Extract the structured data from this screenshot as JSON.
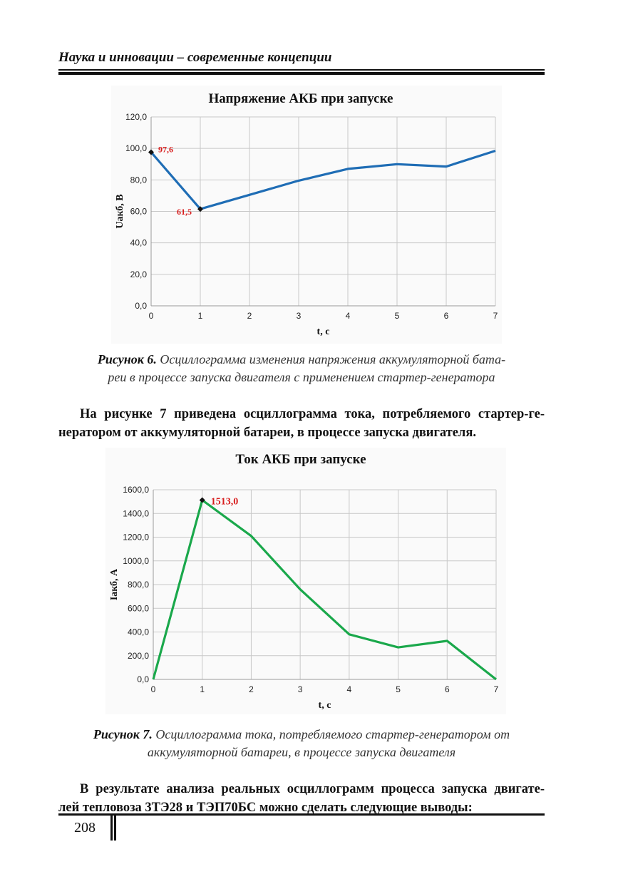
{
  "header": {
    "running_title": "Наука и инновации – современные концепции"
  },
  "chart_data": [
    {
      "type": "line",
      "title": "Напряжение АКБ при запуске",
      "xlabel": "t, c",
      "ylabel": "Uакб, В",
      "x": [
        0,
        1,
        2,
        3,
        4,
        5,
        6,
        7
      ],
      "ylim": [
        0,
        120
      ],
      "xlim": [
        0,
        7
      ],
      "y_ticks": [
        "0,0",
        "20,0",
        "40,0",
        "60,0",
        "80,0",
        "100,0",
        "120,0"
      ],
      "x_ticks": [
        "0",
        "1",
        "2",
        "3",
        "4",
        "5",
        "6",
        "7"
      ],
      "series": [
        {
          "name": "Uакб",
          "color": "#1f6db5",
          "values": [
            97.6,
            61.5,
            70.5,
            79.5,
            87,
            90,
            88.5,
            98.5
          ]
        }
      ],
      "annotations": [
        {
          "x": 0,
          "y": 97.6,
          "text": "97,6"
        },
        {
          "x": 1,
          "y": 61.5,
          "text": "61,5"
        }
      ],
      "grid": true
    },
    {
      "type": "line",
      "title": "Ток АКБ при запуске",
      "xlabel": "t, c",
      "ylabel": "Iакб, А",
      "x": [
        0,
        1,
        2,
        3,
        4,
        5,
        6,
        7
      ],
      "ylim": [
        0,
        1600
      ],
      "xlim": [
        0,
        7
      ],
      "y_ticks": [
        "0,0",
        "200,0",
        "400,0",
        "600,0",
        "800,0",
        "1000,0",
        "1200,0",
        "1400,0",
        "1600,0"
      ],
      "x_ticks": [
        "0",
        "1",
        "2",
        "3",
        "4",
        "5",
        "6",
        "7"
      ],
      "series": [
        {
          "name": "Iакб",
          "color": "#1aa84b",
          "values": [
            0,
            1513,
            1210,
            760,
            380,
            270,
            325,
            0
          ]
        }
      ],
      "annotations": [
        {
          "x": 1,
          "y": 1513,
          "text": "1513,0"
        }
      ],
      "grid": true
    }
  ],
  "captions": {
    "fig6_label": "Рисунок 6.",
    "fig6_text_1": " Осциллограмма изменения напряжения аккумуляторной бата-",
    "fig6_text_2": "реи в процессе запуска двигателя с применением стартер-генератора",
    "fig7_label": "Рисунок 7.",
    "fig7_text_1": " Осциллограмма тока, потребляемого стартер-генератором от",
    "fig7_text_2": "аккумуляторной батареи, в процессе запуска двигателя"
  },
  "paragraphs": {
    "p1_line1": "На рисунке 7 приведена осциллограмма тока, потребляемого стартер-ге-",
    "p1_line2": "нератором от аккумуляторной батареи, в процессе запуска двигателя.",
    "p2_line1": "В результате анализа реальных осциллограмм процесса запуска двигате-",
    "p2_line2": "лей тепловоза 3ТЭ28 и ТЭП70БС можно сделать следующие выводы:"
  },
  "footer": {
    "page_number": "208"
  }
}
